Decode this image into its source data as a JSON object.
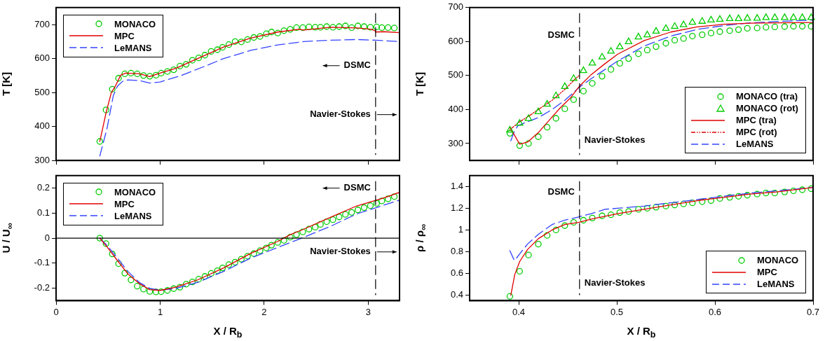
{
  "chart_data": [
    {
      "type": "line",
      "ylabel": "T [K]",
      "xlim": [
        0,
        3.3
      ],
      "xticks": [
        0,
        1,
        2,
        3
      ],
      "ylim": [
        300,
        750
      ],
      "yticks": [
        300,
        400,
        500,
        600,
        700
      ],
      "tick_labels": "y",
      "legend": "top left",
      "ref_lines": [
        {
          "axis": "x",
          "value": 3.07,
          "color": "#000000",
          "line_style": "dashed"
        }
      ],
      "annotations": [
        "DSMC",
        "Navier-Stokes"
      ],
      "series": [
        {
          "name": "MONACO",
          "type": "scatter",
          "marker": "circle",
          "color": "#00cc00",
          "x": [
            0.42,
            0.48,
            0.54,
            0.6,
            0.66,
            0.72,
            0.78,
            0.84,
            0.9,
            0.96,
            1.01,
            1.07,
            1.13,
            1.19,
            1.25,
            1.31,
            1.37,
            1.43,
            1.49,
            1.55,
            1.6,
            1.66,
            1.72,
            1.78,
            1.84,
            1.9,
            1.96,
            2.02,
            2.07,
            2.13,
            2.19,
            2.25,
            2.31,
            2.37,
            2.43,
            2.49,
            2.54,
            2.6,
            2.66,
            2.72,
            2.78,
            2.84,
            2.9,
            2.96,
            3.02,
            3.08,
            3.13,
            3.19,
            3.25
          ],
          "values": [
            356,
            449,
            510,
            542,
            555,
            557,
            555,
            550,
            548,
            551,
            557,
            562,
            567,
            578,
            583,
            595,
            602,
            610,
            621,
            626,
            633,
            641,
            650,
            649,
            656,
            662,
            665,
            673,
            678,
            675,
            682,
            686,
            691,
            691,
            693,
            692,
            692,
            694,
            692,
            694,
            696,
            691,
            696,
            694,
            692,
            693,
            691,
            691,
            690
          ]
        },
        {
          "name": "MPC",
          "color": "#e00000",
          "line_style": "solid",
          "x": [
            0.42,
            0.48,
            0.53,
            0.57,
            0.62,
            0.67,
            0.8,
            0.9,
            1.0,
            1.15,
            1.36,
            1.61,
            1.87,
            2.13,
            2.33,
            2.38,
            2.64,
            2.89,
            3.03,
            3.065,
            3.07,
            3.15,
            3.3
          ],
          "values": [
            356,
            440,
            499,
            519,
            551,
            557,
            555,
            547,
            557,
            571,
            600,
            634,
            660,
            678,
            686,
            684,
            692,
            690,
            686,
            682,
            678,
            679,
            676
          ]
        },
        {
          "name": "LeMANS",
          "color": "#3344ff",
          "line_style": "dashed",
          "x": [
            0.42,
            0.49,
            0.55,
            0.59,
            0.64,
            0.69,
            0.8,
            0.9,
            1.0,
            1.21,
            1.41,
            1.61,
            1.87,
            2.13,
            2.38,
            2.64,
            2.89,
            3.07,
            3.3
          ],
          "values": [
            313,
            395,
            491,
            519,
            533,
            537,
            535,
            528,
            531,
            551,
            575,
            600,
            624,
            640,
            650,
            654,
            656,
            654,
            650
          ]
        }
      ]
    },
    {
      "type": "line",
      "ylabel": "T [K]",
      "xlim": [
        0.35,
        0.7
      ],
      "xticks": [
        0.4,
        0.5,
        0.6,
        0.7
      ],
      "ylim": [
        250,
        700
      ],
      "yticks": [
        300,
        400,
        500,
        600,
        700
      ],
      "tick_labels": "y",
      "legend": "bottom right",
      "ref_lines": [
        {
          "axis": "x",
          "value": 0.462,
          "color": "#000000",
          "line_style": "dashed"
        }
      ],
      "annotations": [
        "DSMC",
        "Navier-Stokes"
      ],
      "series": [
        {
          "name": "MONACO (tra)",
          "type": "scatter",
          "marker": "circle",
          "color": "#00cc00",
          "x": [
            0.391,
            0.401,
            0.41,
            0.42,
            0.429,
            0.438,
            0.447,
            0.456,
            0.466,
            0.475,
            0.485,
            0.494,
            0.503,
            0.512,
            0.522,
            0.531,
            0.54,
            0.55,
            0.559,
            0.568,
            0.577,
            0.587,
            0.596,
            0.605,
            0.615,
            0.624,
            0.633,
            0.643,
            0.652,
            0.661,
            0.671,
            0.68,
            0.689,
            0.698
          ],
          "values": [
            330,
            294,
            300,
            320,
            348,
            374,
            402,
            429,
            454,
            477,
            498,
            518,
            536,
            550,
            564,
            575,
            585,
            595,
            604,
            609,
            616,
            620,
            625,
            629,
            632,
            635,
            639,
            640,
            642,
            643,
            644,
            645,
            645,
            645
          ]
        },
        {
          "name": "MONACO (rot)",
          "type": "scatter",
          "marker": "triangle",
          "color": "#00cc00",
          "x": [
            0.391,
            0.401,
            0.41,
            0.42,
            0.429,
            0.438,
            0.447,
            0.456,
            0.466,
            0.475,
            0.485,
            0.494,
            0.503,
            0.512,
            0.522,
            0.531,
            0.54,
            0.55,
            0.559,
            0.568,
            0.577,
            0.587,
            0.596,
            0.605,
            0.615,
            0.624,
            0.633,
            0.643,
            0.652,
            0.661,
            0.671,
            0.68,
            0.689,
            0.698
          ],
          "values": [
            342,
            362,
            376,
            396,
            418,
            443,
            470,
            494,
            517,
            539,
            557,
            574,
            587,
            602,
            616,
            622,
            633,
            641,
            647,
            652,
            659,
            662,
            666,
            668,
            670,
            670,
            671,
            671,
            673,
            673,
            673,
            673,
            673,
            673
          ]
        },
        {
          "name": "MPC (tra)",
          "color": "#e00000",
          "line_style": "solid",
          "x": [
            0.391,
            0.401,
            0.409,
            0.42,
            0.431,
            0.442,
            0.453,
            0.462,
            0.474,
            0.488,
            0.501,
            0.528,
            0.555,
            0.582,
            0.609,
            0.636,
            0.663,
            0.699
          ],
          "values": [
            348,
            298,
            304,
            332,
            368,
            404,
            435,
            469,
            503,
            535,
            563,
            603,
            628,
            643,
            651,
            654,
            655,
            656
          ]
        },
        {
          "name": "MPC (rot)",
          "color": "#e00000",
          "line_style": "dotted",
          "x": [
            0.391,
            0.401,
            0.412,
            0.42,
            0.434,
            0.447,
            0.458,
            0.462
          ],
          "values": [
            341,
            364,
            384,
            400,
            427,
            459,
            491,
            501
          ]
        },
        {
          "name": "LeMANS",
          "color": "#3344ff",
          "line_style": "dashed",
          "x": [
            0.392,
            0.395,
            0.399,
            0.409,
            0.42,
            0.434,
            0.447,
            0.462,
            0.474,
            0.501,
            0.528,
            0.555,
            0.582,
            0.609,
            0.636,
            0.663,
            0.699
          ],
          "values": [
            308,
            332,
            352,
            364,
            376,
            400,
            427,
            466,
            491,
            543,
            587,
            616,
            636,
            647,
            655,
            659,
            663
          ]
        }
      ]
    },
    {
      "type": "line",
      "ylabel": "U / U$_{∞}$",
      "xlabel": "X / R$_{b}$",
      "xlim": [
        0,
        3.3
      ],
      "xticks": [
        0,
        1,
        2,
        3
      ],
      "ylim": [
        -0.25,
        0.25
      ],
      "yticks": [
        -0.2,
        -0.1,
        0,
        0.1,
        0.2
      ],
      "legend": "top left",
      "ref_lines": [
        {
          "axis": "x",
          "value": 3.07,
          "color": "#000000",
          "line_style": "dashed"
        },
        {
          "axis": "y",
          "value": 0,
          "color": "#000000",
          "line_style": "solid"
        }
      ],
      "annotations": [
        "DSMC",
        "Navier-Stokes"
      ],
      "series": [
        {
          "name": "MONACO",
          "type": "scatter",
          "marker": "circle",
          "color": "#00cc00",
          "x": [
            0.42,
            0.48,
            0.54,
            0.6,
            0.66,
            0.72,
            0.78,
            0.84,
            0.9,
            0.96,
            1.01,
            1.07,
            1.13,
            1.19,
            1.25,
            1.31,
            1.37,
            1.43,
            1.49,
            1.55,
            1.6,
            1.66,
            1.72,
            1.78,
            1.84,
            1.9,
            1.96,
            2.02,
            2.07,
            2.13,
            2.19,
            2.25,
            2.31,
            2.37,
            2.43,
            2.49,
            2.54,
            2.6,
            2.66,
            2.72,
            2.78,
            2.84,
            2.9,
            2.96,
            3.02,
            3.08,
            3.13,
            3.19,
            3.25
          ],
          "values": [
            0,
            -0.022,
            -0.063,
            -0.102,
            -0.14,
            -0.167,
            -0.192,
            -0.204,
            -0.213,
            -0.215,
            -0.214,
            -0.209,
            -0.202,
            -0.196,
            -0.184,
            -0.175,
            -0.164,
            -0.153,
            -0.141,
            -0.13,
            -0.119,
            -0.106,
            -0.096,
            -0.084,
            -0.072,
            -0.062,
            -0.05,
            -0.039,
            -0.028,
            -0.017,
            -0.009,
            0.004,
            0.014,
            0.025,
            0.036,
            0.044,
            0.055,
            0.066,
            0.074,
            0.085,
            0.095,
            0.103,
            0.113,
            0.122,
            0.13,
            0.139,
            0.149,
            0.157,
            0.166
          ]
        },
        {
          "name": "MPC",
          "color": "#e00000",
          "line_style": "solid",
          "x": [
            0.42,
            0.49,
            0.59,
            0.69,
            0.8,
            0.9,
            1.0,
            1.15,
            1.36,
            1.61,
            1.87,
            2.13,
            2.25,
            2.38,
            2.64,
            2.89,
            3.15,
            3.3
          ],
          "values": [
            0,
            -0.035,
            -0.09,
            -0.143,
            -0.182,
            -0.206,
            -0.209,
            -0.196,
            -0.167,
            -0.119,
            -0.061,
            -0.013,
            0.014,
            0.036,
            0.084,
            0.129,
            0.161,
            0.183
          ]
        },
        {
          "name": "LeMANS",
          "color": "#3344ff",
          "line_style": "dashed",
          "x": [
            0.42,
            0.49,
            0.59,
            0.69,
            0.8,
            0.9,
            1.0,
            1.15,
            1.36,
            1.61,
            1.87,
            2.13,
            2.36,
            2.64,
            2.89,
            3.15,
            3.3
          ],
          "values": [
            0,
            -0.029,
            -0.08,
            -0.133,
            -0.177,
            -0.201,
            -0.208,
            -0.201,
            -0.177,
            -0.133,
            -0.08,
            -0.037,
            0,
            0.048,
            0.097,
            0.132,
            0.152
          ]
        }
      ]
    },
    {
      "type": "line",
      "ylabel": "ρ / ρ$_{∞}$",
      "xlabel": "X / R$_{b}$",
      "xlim": [
        0.35,
        0.7
      ],
      "xticks": [
        0.4,
        0.5,
        0.6,
        0.7
      ],
      "ylim": [
        0.35,
        1.5
      ],
      "yticks": [
        0.4,
        0.6,
        0.8,
        1,
        1.2,
        1.4
      ],
      "legend": "bottom right",
      "ref_lines": [
        {
          "axis": "x",
          "value": 0.462,
          "color": "#000000",
          "line_style": "dashed"
        }
      ],
      "annotations": [
        "DSMC",
        "Navier-Stokes"
      ],
      "series": [
        {
          "name": "MONACO",
          "type": "scatter",
          "marker": "circle",
          "color": "#00cc00",
          "x": [
            0.391,
            0.401,
            0.41,
            0.42,
            0.429,
            0.438,
            0.447,
            0.456,
            0.466,
            0.475,
            0.485,
            0.494,
            0.503,
            0.512,
            0.522,
            0.531,
            0.54,
            0.55,
            0.559,
            0.568,
            0.577,
            0.587,
            0.596,
            0.605,
            0.615,
            0.624,
            0.633,
            0.643,
            0.652,
            0.661,
            0.671,
            0.68,
            0.689,
            0.698
          ],
          "values": [
            0.39,
            0.62,
            0.77,
            0.87,
            0.95,
            1.0,
            1.04,
            1.07,
            1.09,
            1.11,
            1.13,
            1.14,
            1.16,
            1.17,
            1.19,
            1.2,
            1.21,
            1.22,
            1.23,
            1.24,
            1.25,
            1.26,
            1.27,
            1.29,
            1.3,
            1.31,
            1.32,
            1.33,
            1.34,
            1.34,
            1.35,
            1.36,
            1.37,
            1.38
          ]
        },
        {
          "name": "MPC",
          "color": "#e00000",
          "line_style": "solid",
          "x": [
            0.392,
            0.396,
            0.401,
            0.409,
            0.42,
            0.434,
            0.447,
            0.461,
            0.474,
            0.501,
            0.528,
            0.555,
            0.582,
            0.609,
            0.636,
            0.663,
            0.699
          ],
          "values": [
            0.4,
            0.59,
            0.71,
            0.82,
            0.92,
            1.0,
            1.05,
            1.07,
            1.1,
            1.15,
            1.19,
            1.23,
            1.27,
            1.3,
            1.33,
            1.35,
            1.39
          ]
        },
        {
          "name": "LeMANS",
          "color": "#3344ff",
          "line_style": "dashed",
          "x": [
            0.391,
            0.395,
            0.396,
            0.401,
            0.409,
            0.42,
            0.434,
            0.447,
            0.461,
            0.474,
            0.488,
            0.501,
            0.528,
            0.555,
            0.582,
            0.609,
            0.636,
            0.663,
            0.699
          ],
          "values": [
            0.81,
            0.73,
            0.72,
            0.78,
            0.87,
            0.96,
            1.05,
            1.09,
            1.12,
            1.15,
            1.19,
            1.2,
            1.22,
            1.25,
            1.28,
            1.31,
            1.34,
            1.36,
            1.39
          ]
        }
      ]
    }
  ]
}
